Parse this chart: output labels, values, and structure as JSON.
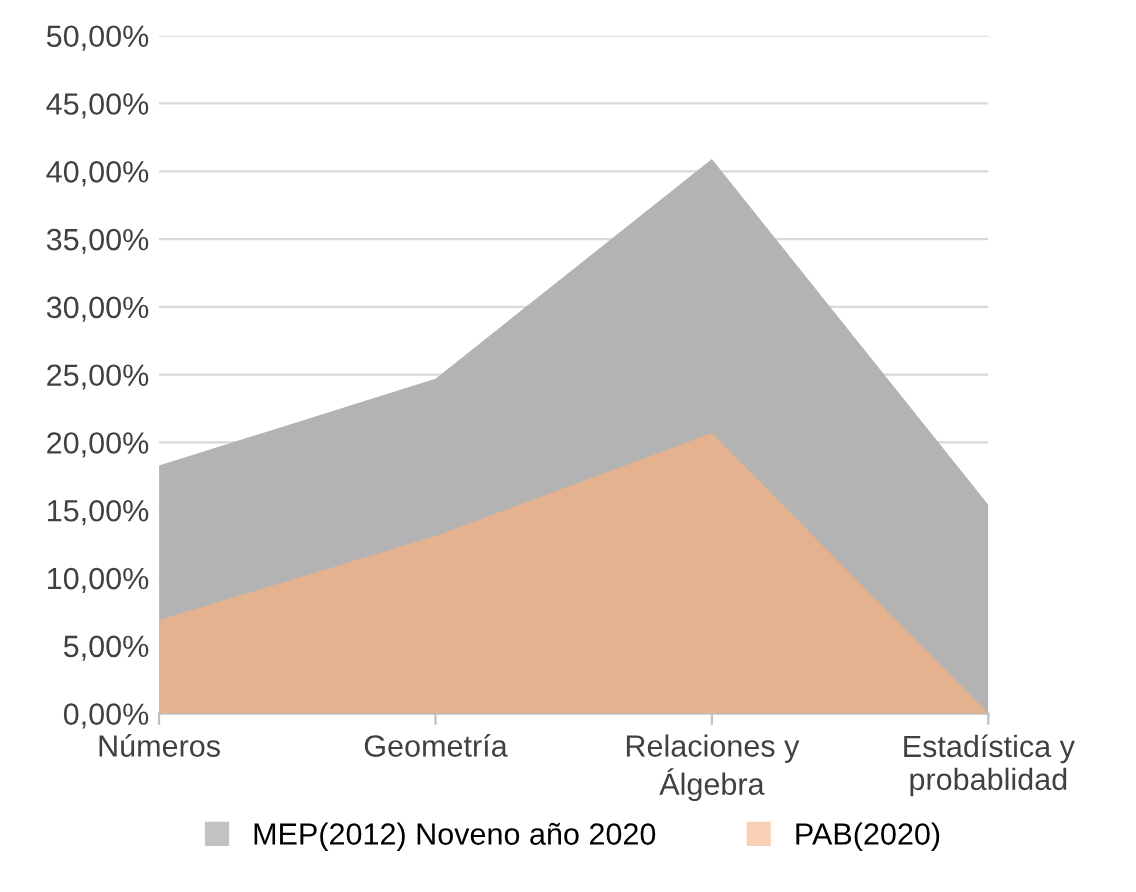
{
  "chart_data": {
    "type": "area",
    "categories": [
      "Números",
      "Geometría",
      "Relaciones y\nÁlgebra",
      "Estadística y\nprobablidad"
    ],
    "series": [
      {
        "name": "MEP(2012) Noveno año 2020",
        "color": "#b3b3b3",
        "values": [
          18.3,
          24.7,
          40.9,
          15.4
        ]
      },
      {
        "name": "PAB(2020)",
        "color": "#f4b183",
        "values": [
          6.9,
          13.1,
          20.7,
          0
        ]
      }
    ],
    "ylim": [
      0,
      50
    ],
    "yticks": [
      {
        "value": 0,
        "label": "0,00%"
      },
      {
        "value": 5,
        "label": "5,00%"
      },
      {
        "value": 10,
        "label": "10,00%"
      },
      {
        "value": 15,
        "label": "15,00%"
      },
      {
        "value": 20,
        "label": "20,00%"
      },
      {
        "value": 25,
        "label": "25,00%"
      },
      {
        "value": 30,
        "label": "30,00%"
      },
      {
        "value": 35,
        "label": "35,00%"
      },
      {
        "value": 40,
        "label": "40,00%"
      },
      {
        "value": 45,
        "label": "45,00%"
      },
      {
        "value": 50,
        "label": "50,00%"
      }
    ],
    "grid": "y",
    "legend": "bottom"
  }
}
